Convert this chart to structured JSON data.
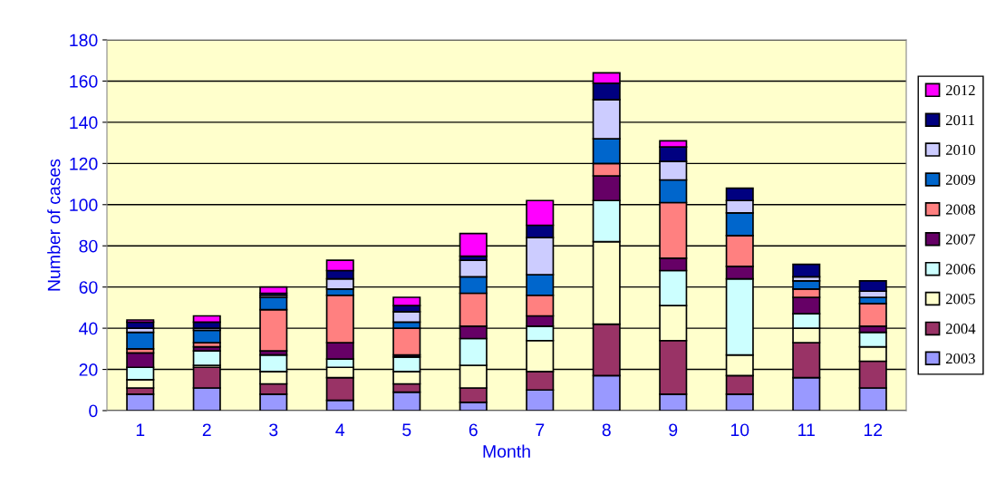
{
  "chart_data": {
    "type": "bar",
    "stacked": true,
    "xlabel": "Month",
    "ylabel": "Number of cases",
    "categories": [
      "1",
      "2",
      "3",
      "4",
      "5",
      "6",
      "7",
      "8",
      "9",
      "10",
      "11",
      "12"
    ],
    "ylim": [
      0,
      180
    ],
    "yticks": [
      0,
      20,
      40,
      60,
      80,
      100,
      120,
      140,
      160,
      180
    ],
    "grid": "y",
    "legend": "right",
    "series": [
      {
        "name": "2003",
        "color": "#9999ff",
        "values": [
          8,
          11,
          8,
          5,
          9,
          4,
          10,
          17,
          8,
          8,
          16,
          11
        ]
      },
      {
        "name": "2004",
        "color": "#993366",
        "values": [
          3,
          10,
          5,
          11,
          4,
          7,
          9,
          25,
          26,
          9,
          17,
          13
        ]
      },
      {
        "name": "2005",
        "color": "#ffffcc",
        "values": [
          4,
          1,
          6,
          5,
          6,
          11,
          15,
          40,
          17,
          10,
          7,
          7
        ]
      },
      {
        "name": "2006",
        "color": "#ccffff",
        "values": [
          6,
          7,
          8,
          4,
          7,
          13,
          7,
          20,
          17,
          37,
          7,
          7
        ]
      },
      {
        "name": "2007",
        "color": "#660066",
        "values": [
          7,
          2,
          2,
          8,
          1,
          6,
          5,
          12,
          6,
          6,
          8,
          3
        ]
      },
      {
        "name": "2008",
        "color": "#ff8080",
        "values": [
          2,
          2,
          20,
          23,
          13,
          16,
          10,
          6,
          27,
          15,
          4,
          11
        ]
      },
      {
        "name": "2009",
        "color": "#0066cc",
        "values": [
          8,
          6,
          6,
          3,
          3,
          8,
          10,
          12,
          11,
          11,
          4,
          3
        ]
      },
      {
        "name": "2010",
        "color": "#ccccff",
        "values": [
          2,
          1,
          1,
          5,
          5,
          8,
          18,
          19,
          9,
          6,
          2,
          3
        ]
      },
      {
        "name": "2011",
        "color": "#000080",
        "values": [
          3,
          3,
          1,
          4,
          3,
          2,
          6,
          8,
          7,
          6,
          6,
          5
        ]
      },
      {
        "name": "2012",
        "color": "#ff00ff",
        "values": [
          1,
          3,
          3,
          5,
          4,
          11,
          12,
          5,
          3,
          null,
          null,
          null
        ]
      }
    ]
  }
}
